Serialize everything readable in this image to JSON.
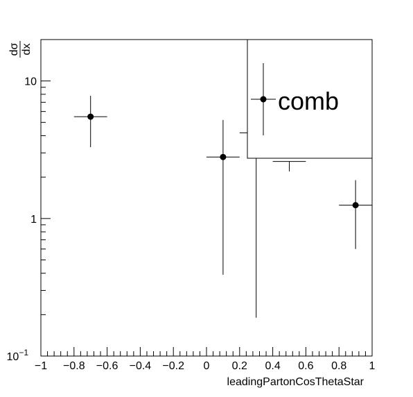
{
  "chart_data": {
    "type": "scatter",
    "subtype": "points-with-error-bars",
    "title": "",
    "xlabel": "leadingPartonCosThetaStar",
    "ylabel": {
      "numerator": "dσ",
      "denominator": "dx"
    },
    "xlim": [
      -1,
      1
    ],
    "ylim": [
      0.1,
      20
    ],
    "yscale": "log",
    "grid": false,
    "legend": {
      "position": "top-right",
      "entries": [
        "comb"
      ]
    },
    "x_ticks": [
      {
        "value": -1,
        "label": "−1"
      },
      {
        "value": -0.8,
        "label": "−0.8"
      },
      {
        "value": -0.6,
        "label": "−0.6"
      },
      {
        "value": -0.4,
        "label": "−0.4"
      },
      {
        "value": -0.2,
        "label": "−0.2"
      },
      {
        "value": 0,
        "label": "0"
      },
      {
        "value": 0.2,
        "label": "0.2"
      },
      {
        "value": 0.4,
        "label": "0.4"
      },
      {
        "value": 0.6,
        "label": "0.6"
      },
      {
        "value": 0.8,
        "label": "0.8"
      },
      {
        "value": 1,
        "label": "1"
      }
    ],
    "y_ticks": [
      {
        "value": 0.1,
        "base": "10",
        "exp": "−1"
      },
      {
        "value": 1,
        "label": "1"
      },
      {
        "value": 10,
        "label": "10"
      }
    ],
    "series": [
      {
        "name": "comb",
        "points": [
          {
            "x": -0.7,
            "y": 5.5,
            "xerr": 0.1,
            "ylo": 3.3,
            "yhi": 7.8,
            "marker": true
          },
          {
            "x": 0.1,
            "y": 2.8,
            "xerr": 0.1,
            "ylo": 0.39,
            "yhi": 5.2,
            "marker": true
          },
          {
            "x": 0.3,
            "y": 4.2,
            "xerr": 0.1,
            "ylo": 0.19,
            "yhi": 8.5,
            "marker": false
          },
          {
            "x": 0.5,
            "y": 2.6,
            "xerr": 0.1,
            "ylo": 2.2,
            "yhi": 2.6,
            "marker": false
          },
          {
            "x": 0.9,
            "y": 1.25,
            "xerr": 0.1,
            "ylo": 0.6,
            "yhi": 1.9,
            "marker": true
          }
        ]
      }
    ]
  }
}
